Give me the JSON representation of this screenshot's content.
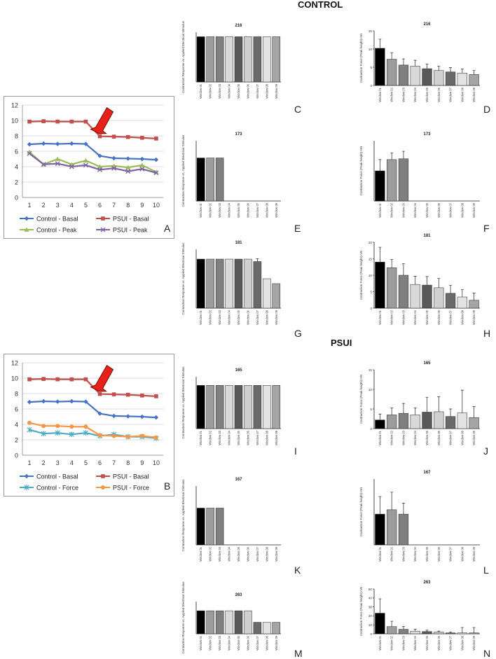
{
  "page": {
    "section_control": "CONTROL",
    "section_psui": "PSUI",
    "colors": {
      "black": "#000000",
      "dark": "#5a5a5a",
      "mid": "#8c8c8c",
      "light": "#cfcfcf"
    }
  },
  "chart_data": [
    {
      "id": "A",
      "type": "line",
      "letter": "A",
      "arrow_at": 5.5,
      "x": [
        1,
        2,
        3,
        4,
        5,
        6,
        7,
        8,
        9,
        10
      ],
      "ylim": [
        0,
        12
      ],
      "yticks": [
        0,
        2,
        4,
        6,
        8,
        10,
        12
      ],
      "series": [
        {
          "name": "Control - Basal",
          "color": "#4472c4",
          "marker": "diamond",
          "values": [
            6.9,
            7.0,
            6.95,
            7.0,
            6.95,
            5.4,
            5.1,
            5.05,
            5.0,
            4.9
          ]
        },
        {
          "name": "PSUI - Basal",
          "color": "#c0504d",
          "marker": "square",
          "values": [
            9.85,
            9.9,
            9.85,
            9.85,
            9.85,
            7.95,
            7.9,
            7.85,
            7.75,
            7.65
          ]
        },
        {
          "name": "Control - Peak",
          "color": "#9bbb59",
          "marker": "triangle",
          "values": [
            5.9,
            4.3,
            5.0,
            4.3,
            4.8,
            4.0,
            4.1,
            3.9,
            4.2,
            3.3
          ]
        },
        {
          "name": "PSUI - Peak",
          "color": "#8064a2",
          "marker": "x",
          "values": [
            5.7,
            4.3,
            4.4,
            4.0,
            4.2,
            3.6,
            3.8,
            3.4,
            3.7,
            3.2
          ]
        }
      ]
    },
    {
      "id": "B",
      "type": "line",
      "letter": "B",
      "arrow_at": 5.5,
      "x": [
        1,
        2,
        3,
        4,
        5,
        6,
        7,
        8,
        9,
        10
      ],
      "ylim": [
        0,
        12
      ],
      "yticks": [
        0,
        2,
        4,
        6,
        8,
        10,
        12
      ],
      "series": [
        {
          "name": "Control - Basal",
          "color": "#4472c4",
          "marker": "diamond",
          "values": [
            6.9,
            7.0,
            6.95,
            7.0,
            6.95,
            5.4,
            5.1,
            5.05,
            5.0,
            4.9
          ]
        },
        {
          "name": "PSUI - Basal",
          "color": "#c0504d",
          "marker": "square",
          "values": [
            9.85,
            9.9,
            9.85,
            9.85,
            9.85,
            7.95,
            7.9,
            7.85,
            7.75,
            7.65
          ]
        },
        {
          "name": "Control - Force",
          "color": "#4bacc6",
          "marker": "star",
          "values": [
            3.3,
            2.8,
            2.9,
            2.7,
            2.9,
            2.5,
            2.7,
            2.4,
            2.4,
            2.2
          ]
        },
        {
          "name": "PSUI - Force",
          "color": "#f79646",
          "marker": "circle",
          "values": [
            4.2,
            3.8,
            3.8,
            3.7,
            3.7,
            2.6,
            2.5,
            2.4,
            2.5,
            2.3
          ]
        }
      ]
    },
    {
      "id": "C",
      "type": "bar",
      "letter": "C",
      "title": "216",
      "ylabel": "Contraction Response vs. Applied Electrical Stimulus",
      "categories": [
        "Window 01",
        "Window 02",
        "Window 03",
        "Window 04",
        "Window 05",
        "Window 06",
        "Window 07",
        "Window 08",
        "Window 09"
      ],
      "ylim": [
        0,
        11
      ],
      "values": [
        10,
        10,
        10,
        10,
        10,
        10,
        10,
        10,
        10
      ],
      "errors": null
    },
    {
      "id": "D",
      "type": "bar",
      "letter": "D",
      "title": "216",
      "ylabel": "Contraction Force (Peak height) mN",
      "categories": [
        "Window 01",
        "Window 02",
        "Window 03",
        "Window 04",
        "Window 05",
        "Window 06",
        "Window 07",
        "Window 08",
        "Window 09"
      ],
      "ylim": [
        0,
        15
      ],
      "yticks": [
        0,
        5,
        10,
        15
      ],
      "values": [
        10.2,
        7.2,
        5.6,
        5.3,
        4.6,
        4.1,
        3.7,
        3.4,
        3.0
      ],
      "errors": [
        2.5,
        1.8,
        1.7,
        1.6,
        1.3,
        1.2,
        1.2,
        1.1,
        1.1
      ]
    },
    {
      "id": "E",
      "type": "bar",
      "letter": "E",
      "title": "173",
      "ylabel": "Contraction Response vs. Applied Electrical Stimulus",
      "categories": [
        "Window 01",
        "Window 02",
        "Window 03",
        "Window 04",
        "Window 05",
        "Window 06",
        "Window 07",
        "Window 08",
        "Window 09"
      ],
      "ylim": [
        0,
        14
      ],
      "values": [
        10,
        10,
        10,
        0,
        0,
        0,
        0,
        0,
        0
      ],
      "errors": null
    },
    {
      "id": "F",
      "type": "bar",
      "letter": "F",
      "title": "173",
      "ylabel": "Contraction Force (Peak height) mN",
      "categories": [
        "Window 01",
        "Window 02",
        "Window 03",
        "Window 04",
        "Window 05",
        "Window 06",
        "Window 07",
        "Window 08",
        "Window 09"
      ],
      "ylim": [
        0,
        1.6
      ],
      "values": [
        0.8,
        1.1,
        1.12,
        0,
        0,
        0,
        0,
        0,
        0
      ],
      "errors": [
        0.3,
        0.18,
        0.2,
        0,
        0,
        0,
        0,
        0,
        0
      ]
    },
    {
      "id": "G",
      "type": "bar",
      "letter": "G",
      "title": "181",
      "ylabel": "Contraction Response vs. Applied Electrical Stimulus",
      "categories": [
        "Window 01",
        "Window 02",
        "Window 03",
        "Window 04",
        "Window 05",
        "Window 06",
        "Window 07",
        "Window 08",
        "Window 09"
      ],
      "ylim": [
        0,
        12
      ],
      "values": [
        10,
        10,
        10,
        10,
        10,
        10,
        9.5,
        6,
        5
      ],
      "errors": [
        0,
        0,
        0,
        0,
        0,
        0,
        0.6,
        0,
        0
      ]
    },
    {
      "id": "H",
      "type": "bar",
      "letter": "H",
      "title": "181",
      "ylabel": "Contraction Force (Peak height) mN",
      "categories": [
        "Window 01",
        "Window 02",
        "Window 03",
        "Window 04",
        "Window 05",
        "Window 06",
        "Window 07",
        "Window 08",
        "Window 09"
      ],
      "ylim": [
        0,
        20
      ],
      "yticks": [
        0,
        5,
        10,
        15,
        20
      ],
      "values": [
        14,
        12.3,
        10,
        7.2,
        7.0,
        6.2,
        4.5,
        3.4,
        2.4
      ],
      "errors": [
        4.5,
        2.5,
        3.5,
        2.5,
        2.6,
        2.8,
        2.4,
        2.2,
        2.2
      ]
    },
    {
      "id": "I",
      "type": "bar",
      "letter": "I",
      "title": "165",
      "ylabel": "Contraction Response vs. Applied Electrical Stimulus",
      "categories": [
        "Window 01",
        "Window 02",
        "Window 03",
        "Window 04",
        "Window 05",
        "Window 06",
        "Window 07",
        "Window 08",
        "Window 09"
      ],
      "ylim": [
        0,
        12
      ],
      "values": [
        10,
        10,
        10,
        10,
        10,
        10,
        10,
        10,
        10
      ],
      "errors": null
    },
    {
      "id": "J",
      "type": "bar",
      "letter": "J",
      "title": "165",
      "ylabel": "Contraction Force (Peak height) mN",
      "categories": [
        "Window 01",
        "Window 02",
        "Window 03",
        "Window 04",
        "Window 05",
        "Window 06",
        "Window 07",
        "Window 08",
        "Window 09"
      ],
      "ylim": [
        0,
        15
      ],
      "yticks": [
        0,
        5,
        10,
        15
      ],
      "values": [
        2.2,
        3.5,
        3.9,
        3.5,
        4.2,
        4.3,
        3.1,
        4.0,
        2.8
      ],
      "errors": [
        1.5,
        1.8,
        2.5,
        1.8,
        3.8,
        3.8,
        1.9,
        5.8,
        2.8
      ]
    },
    {
      "id": "K",
      "type": "bar",
      "letter": "K",
      "title": "167",
      "ylabel": "Contraction Response vs. Applied Electrical Stimulus",
      "categories": [
        "Window 01",
        "Window 02",
        "Window 03",
        "Window 04",
        "Window 05",
        "Window 06",
        "Window 07",
        "Window 08",
        "Window 09"
      ],
      "ylim": [
        0,
        16
      ],
      "values": [
        10,
        10,
        10,
        0,
        0,
        0,
        0,
        0,
        0
      ],
      "errors": null
    },
    {
      "id": "L",
      "type": "bar",
      "letter": "L",
      "title": "167",
      "ylabel": "Contraction Force (Peak height) mN",
      "categories": [
        "Window 01",
        "Window 02",
        "Window 03",
        "Window 04",
        "Window 05",
        "Window 06",
        "Window 07",
        "Window 08",
        "Window 09"
      ],
      "ylim": [
        0,
        3
      ],
      "values": [
        1.4,
        1.6,
        1.4,
        0,
        0,
        0,
        0,
        0,
        0
      ],
      "errors": [
        0.8,
        0.8,
        0.5,
        0,
        0,
        0,
        0,
        0,
        0
      ]
    },
    {
      "id": "M",
      "type": "bar",
      "letter": "M",
      "title": "263",
      "ylabel": "Contraction Response vs. Applied Electrical Stimulus",
      "categories": [
        "Window 01",
        "Window 02",
        "Window 03",
        "Window 04",
        "Window 05",
        "Window 06",
        "Window 07",
        "Window 08",
        "Window 09"
      ],
      "ylim": [
        0,
        14
      ],
      "values": [
        10,
        10,
        10,
        10,
        10,
        10,
        5,
        5,
        5
      ],
      "errors": null
    },
    {
      "id": "N",
      "type": "bar",
      "letter": "N",
      "title": "263",
      "ylabel": "Contraction Force (Peak height) mN",
      "categories": [
        "Window 01",
        "Window 02",
        "Window 03",
        "Window 04",
        "Window 05",
        "Window 06",
        "Window 07",
        "Window 08",
        "Window 09"
      ],
      "ylim": [
        0,
        50
      ],
      "yticks": [
        0,
        10,
        20,
        30,
        40,
        50
      ],
      "values": [
        23,
        8,
        5,
        3,
        2.5,
        2,
        1,
        1,
        1
      ],
      "errors": [
        16,
        6,
        3,
        2,
        1.5,
        1,
        1,
        6,
        6
      ]
    }
  ]
}
